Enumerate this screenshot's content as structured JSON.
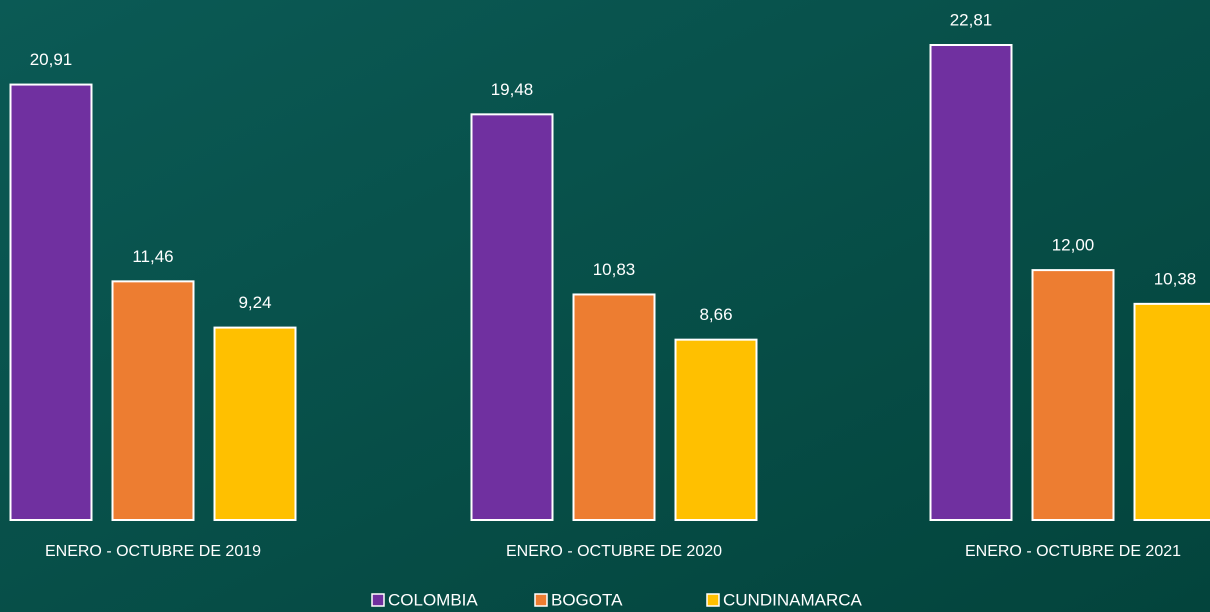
{
  "chart_data": {
    "type": "bar",
    "categories": [
      "ENERO - OCTUBRE  DE 2019",
      "ENERO - OCTUBRE  DE 2020",
      "ENERO - OCTUBRE DE 2021"
    ],
    "series": [
      {
        "name": "COLOMBIA",
        "color": "#7030a0",
        "values": [
          20.91,
          19.48,
          22.81
        ],
        "value_labels": [
          "20,91",
          "19,48",
          "22,81"
        ]
      },
      {
        "name": "BOGOTA",
        "color": "#ed7d31",
        "values": [
          11.46,
          10.83,
          12.0
        ],
        "value_labels": [
          "11,46",
          "10,83",
          "12,00"
        ]
      },
      {
        "name": "CUNDINAMARCA",
        "color": "#ffc000",
        "values": [
          9.24,
          8.66,
          10.38
        ],
        "value_labels": [
          "9,24",
          "8,66",
          "10,38"
        ]
      }
    ]
  }
}
